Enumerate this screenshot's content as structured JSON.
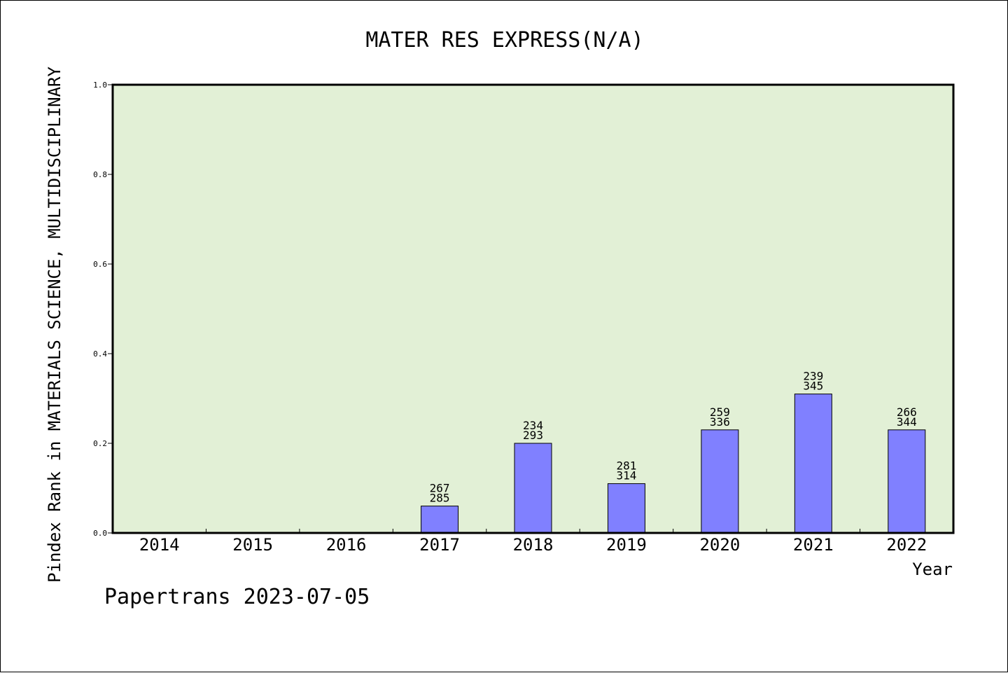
{
  "chart_data": {
    "type": "bar",
    "title": "MATER RES EXPRESS(N/A)",
    "xlabel": "Year",
    "ylabel": "Pindex Rank in MATERIALS SCIENCE, MULTIDISCIPLINARY",
    "categories": [
      "2014",
      "2015",
      "2016",
      "2017",
      "2018",
      "2019",
      "2020",
      "2021",
      "2022"
    ],
    "values": [
      null,
      null,
      null,
      0.06,
      0.2,
      0.11,
      0.23,
      0.31,
      0.23
    ],
    "bar_labels": [
      null,
      null,
      null,
      [
        "267",
        "285"
      ],
      [
        "234",
        "293"
      ],
      [
        "281",
        "314"
      ],
      [
        "259",
        "336"
      ],
      [
        "239",
        "345"
      ],
      [
        "266",
        "344"
      ]
    ],
    "ylim": [
      0,
      1.0
    ],
    "yticks": [
      "0.0",
      "0.2",
      "0.4",
      "0.6",
      "0.8",
      "1.0"
    ],
    "grid": false,
    "legend": "none"
  },
  "colors": {
    "plot_background": "#e2f0d6",
    "bar_fill": "#8080ff",
    "bar_stroke": "#000000",
    "axis": "#000000"
  },
  "footer": "Papertrans 2023-07-05"
}
